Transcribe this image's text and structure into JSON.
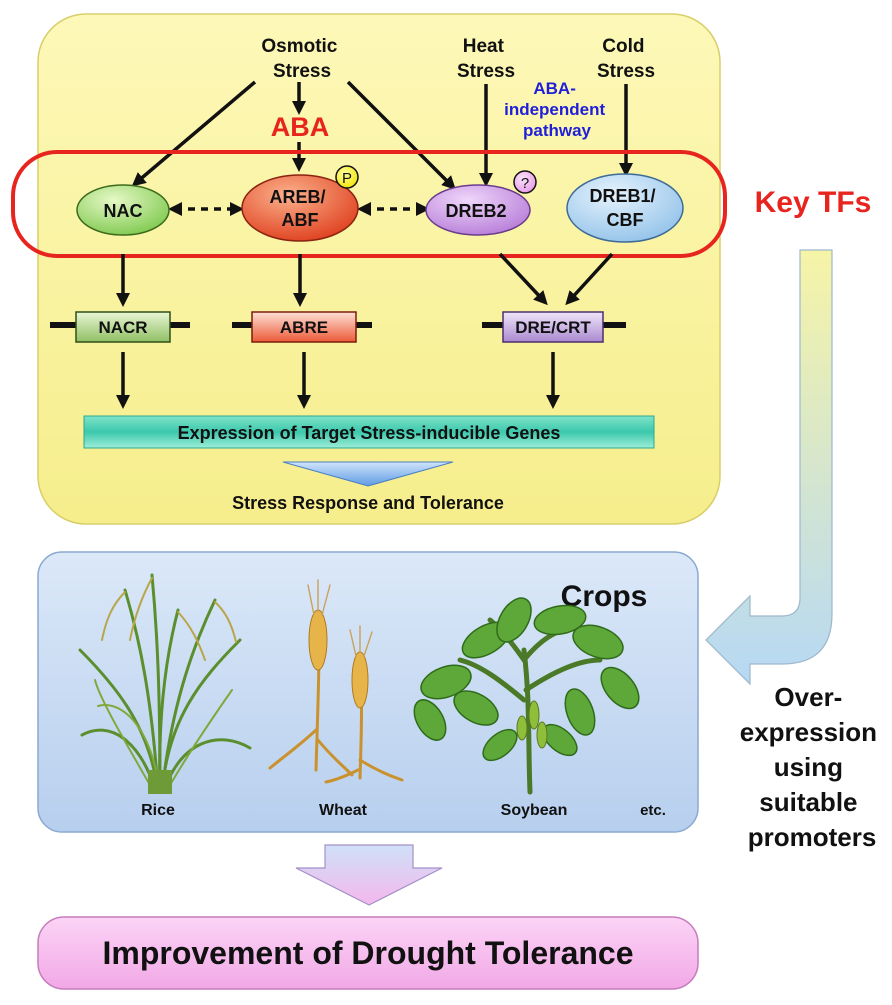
{
  "stresses": {
    "osmotic": [
      "Osmotic",
      "Stress"
    ],
    "heat": [
      "Heat",
      "Stress"
    ],
    "cold": [
      "Cold",
      "Stress"
    ]
  },
  "aba": "ABA",
  "aba_independent": [
    "ABA-",
    "independent",
    "pathway"
  ],
  "tfs": {
    "nac": [
      "NAC"
    ],
    "areb": [
      "AREB/",
      "ABF"
    ],
    "dreb2": [
      "DREB2"
    ],
    "dreb1": [
      "DREB1/",
      "CBF"
    ]
  },
  "badges": {
    "phospho": "P",
    "unknown": "?"
  },
  "key_tfs": "Key TFs",
  "elements": {
    "nacr": "NACR",
    "abre": "ABRE",
    "dre": "DRE/CRT"
  },
  "target_genes": "Expression of Target Stress-inducible Genes",
  "response": "Stress Response and Tolerance",
  "crops": {
    "title": "Crops",
    "labels": {
      "rice": "Rice",
      "wheat": "Wheat",
      "soybean": "Soybean",
      "etc": "etc."
    }
  },
  "overexpression": [
    "Over-",
    "expression",
    "using",
    "suitable",
    "promoters"
  ],
  "outcome": "Improvement of Drought Tolerance",
  "colors": {
    "panel_yellow": "#faf5a2",
    "panel_blue": "#c7dcf4",
    "key_red": "#e8241f",
    "aba_blue": "#1f1fd9",
    "nac_green": "#8fd65a",
    "areb_red": "#e84a23",
    "dreb2_purple": "#c48ae0",
    "dreb1_blue": "#a9d2f2",
    "outcome_pink": "#f6b8ee"
  }
}
